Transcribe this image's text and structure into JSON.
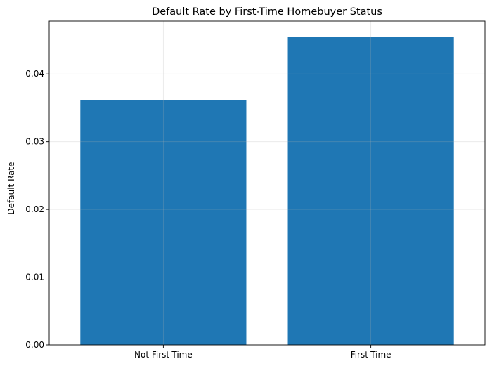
{
  "chart_data": {
    "type": "bar",
    "title": "Default Rate by First-Time Homebuyer Status",
    "xlabel": "",
    "ylabel": "Default Rate",
    "categories": [
      "Not First-Time",
      "First-Time"
    ],
    "values": [
      0.0361,
      0.0455
    ],
    "ylim": [
      0,
      0.0478
    ],
    "yticks": [
      0.0,
      0.01,
      0.02,
      0.03,
      0.04
    ],
    "ytick_labels": [
      "0.00",
      "0.01",
      "0.02",
      "0.03",
      "0.04"
    ],
    "grid": true,
    "bar_color": "#1f77b4"
  }
}
